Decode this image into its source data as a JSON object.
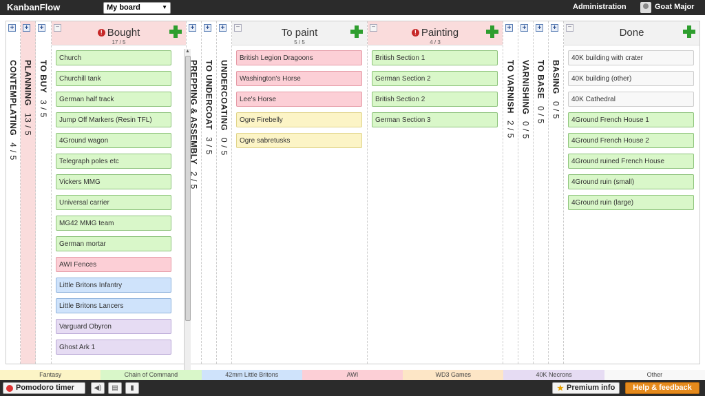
{
  "app": {
    "title": "KanbanFlow",
    "board": "My board",
    "admin": "Administration",
    "user": "Goat Major"
  },
  "columns": {
    "contemplating": {
      "label": "CONTEMPLATING",
      "count": "4 / 5"
    },
    "planning": {
      "label": "PLANNING",
      "count": "13 / 5"
    },
    "tobuy": {
      "label": "TO BUY",
      "count": "3 / 5"
    },
    "bought": {
      "label": "Bought",
      "count": "17 / 5",
      "cards": [
        {
          "t": "Church",
          "c": "green"
        },
        {
          "t": "Churchill tank",
          "c": "green"
        },
        {
          "t": "German half track",
          "c": "green"
        },
        {
          "t": "Jump Off Markers (Resin TFL)",
          "c": "green"
        },
        {
          "t": "4Ground wagon",
          "c": "green"
        },
        {
          "t": "Telegraph poles etc",
          "c": "green"
        },
        {
          "t": "Vickers MMG",
          "c": "green"
        },
        {
          "t": "Universal carrier",
          "c": "green"
        },
        {
          "t": "MG42 MMG team",
          "c": "green"
        },
        {
          "t": "German mortar",
          "c": "green"
        },
        {
          "t": "AWI Fences",
          "c": "pink"
        },
        {
          "t": "Little Britons Infantry",
          "c": "blue"
        },
        {
          "t": "Little Britons Lancers",
          "c": "blue"
        },
        {
          "t": "Varguard Obyron",
          "c": "purple"
        },
        {
          "t": "Ghost Ark 1",
          "c": "purple"
        }
      ]
    },
    "prepping": {
      "label": "PREPPING & ASSEMBLY",
      "count": "2 / 5"
    },
    "toundercoat": {
      "label": "TO UNDERCOAT",
      "count": "3 / 5"
    },
    "undercoating": {
      "label": "UNDERCOATING",
      "count": "0 / 5"
    },
    "topaint": {
      "label": "To paint",
      "count": "5 / 5",
      "cards": [
        {
          "t": "British Legion Dragoons",
          "c": "pink"
        },
        {
          "t": "Washington's Horse",
          "c": "pink"
        },
        {
          "t": "Lee's Horse",
          "c": "pink"
        },
        {
          "t": "Ogre Firebelly",
          "c": "yellow"
        },
        {
          "t": "Ogre sabretusks",
          "c": "yellow"
        }
      ]
    },
    "painting": {
      "label": "Painting",
      "count": "4 / 3",
      "cards": [
        {
          "t": "British Section 1",
          "c": "green"
        },
        {
          "t": "German Section 2",
          "c": "green"
        },
        {
          "t": "British Section 2",
          "c": "green"
        },
        {
          "t": "German Section 3",
          "c": "green"
        }
      ]
    },
    "tovarnish": {
      "label": "TO VARNISH",
      "count": "2 / 5"
    },
    "varnishing": {
      "label": "VARNISHING",
      "count": "0 / 5"
    },
    "tobase": {
      "label": "TO BASE",
      "count": "0 / 5"
    },
    "basing": {
      "label": "BASING",
      "count": "0 / 5"
    },
    "done": {
      "label": "Done",
      "cards": [
        {
          "t": "40K building with crater",
          "c": "white"
        },
        {
          "t": "40K building (other)",
          "c": "white"
        },
        {
          "t": "40K Cathedral",
          "c": "white"
        },
        {
          "t": "4Ground French House 1",
          "c": "green"
        },
        {
          "t": "4Ground French House 2",
          "c": "green"
        },
        {
          "t": "4Ground ruined French House",
          "c": "green"
        },
        {
          "t": "4Ground ruin (small)",
          "c": "green"
        },
        {
          "t": "4Ground ruin (large)",
          "c": "green"
        }
      ]
    }
  },
  "legend": [
    {
      "label": "Fantasy",
      "color": "#fcf4c6"
    },
    {
      "label": "Chain of Command",
      "color": "#d9f7c9"
    },
    {
      "label": "42mm Little Britons",
      "color": "#cfe3fb"
    },
    {
      "label": "AWI",
      "color": "#fccfd6"
    },
    {
      "label": "WD3 Games",
      "color": "#fde6c6"
    },
    {
      "label": "40K Necrons",
      "color": "#e6dcf3"
    },
    {
      "label": "Other",
      "color": "#f8f8f8"
    }
  ],
  "footer": {
    "pomodoro": "Pomodoro timer",
    "premium": "Premium info",
    "help": "Help & feedback"
  }
}
